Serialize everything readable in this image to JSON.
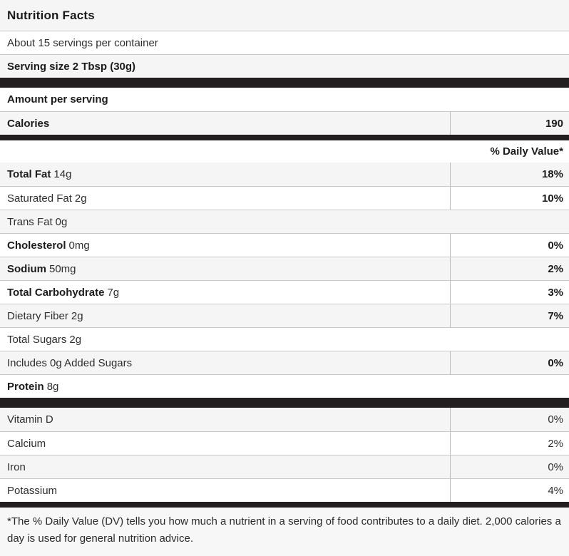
{
  "label": {
    "title": "Nutrition Facts",
    "servings_per_container": "About 15 servings per container",
    "serving_size": "Serving size 2 Tbsp (30g)",
    "amount_per_serving": "Amount per serving",
    "calories_label": "Calories",
    "calories_value": "190",
    "daily_value_header": "% Daily Value*",
    "footnote": "*The % Daily Value (DV) tells you how much a nutrient in a serving of food contributes to a daily diet. 2,000 calories a day is used for general nutrition advice."
  },
  "nutrients": [
    {
      "name": "Total Fat",
      "amount": "14g",
      "name_bold": true,
      "dv": "18%",
      "dv_bold": true,
      "shade": true
    },
    {
      "name": "Saturated Fat",
      "amount": "2g",
      "name_bold": false,
      "dv": "10%",
      "dv_bold": true,
      "shade": false
    },
    {
      "name": "Trans Fat",
      "amount": "0g",
      "name_bold": false,
      "dv": null,
      "dv_bold": false,
      "shade": true
    },
    {
      "name": "Cholesterol",
      "amount": "0mg",
      "name_bold": true,
      "dv": "0%",
      "dv_bold": true,
      "shade": false
    },
    {
      "name": "Sodium",
      "amount": "50mg",
      "name_bold": true,
      "dv": "2%",
      "dv_bold": true,
      "shade": true
    },
    {
      "name": "Total Carbohydrate",
      "amount": "7g",
      "name_bold": true,
      "dv": "3%",
      "dv_bold": true,
      "shade": false
    },
    {
      "name": "Dietary Fiber",
      "amount": "2g",
      "name_bold": false,
      "dv": "7%",
      "dv_bold": true,
      "shade": true
    },
    {
      "name": "Total Sugars",
      "amount": "2g",
      "name_bold": false,
      "dv": null,
      "dv_bold": false,
      "shade": false
    },
    {
      "name": "Includes 0g Added Sugars",
      "amount": "",
      "name_bold": false,
      "dv": "0%",
      "dv_bold": true,
      "shade": true
    },
    {
      "name": "Protein",
      "amount": "8g",
      "name_bold": true,
      "dv": null,
      "dv_bold": false,
      "shade": false
    }
  ],
  "vitamins": [
    {
      "name": "Vitamin D",
      "dv": "0%",
      "shade": true
    },
    {
      "name": "Calcium",
      "dv": "2%",
      "shade": false
    },
    {
      "name": "Iron",
      "dv": "0%",
      "shade": true
    },
    {
      "name": "Potassium",
      "dv": "4%",
      "shade": false
    }
  ],
  "colors": {
    "row_shade": "#f5f5f5",
    "section_bar": "#231f20",
    "row_border": "#c9c9c9",
    "column_divider": "#bdbdbd",
    "footnote_bg": "#f7f7f7",
    "text": "#2e2e2e",
    "bold_text": "#1c1c1c"
  }
}
